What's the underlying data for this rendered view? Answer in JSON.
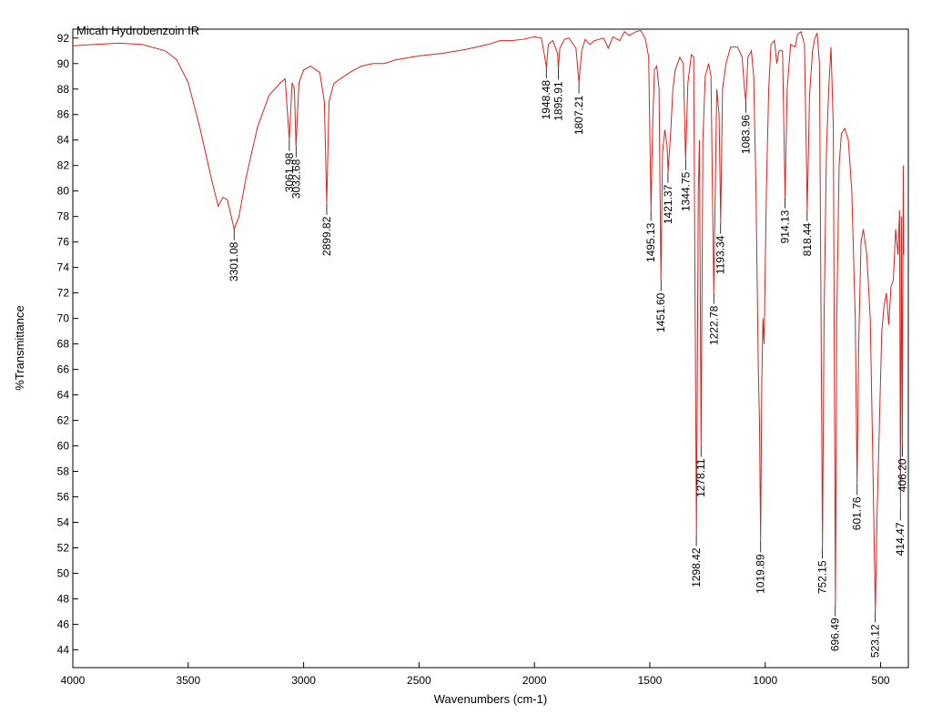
{
  "chart_data": {
    "type": "line",
    "xlabel": "Wavenumbers (cm-1)",
    "ylabel": "%Transmittance",
    "xlim": [
      4000,
      380
    ],
    "ylim": [
      42.6,
      92.7
    ],
    "xticks": [
      4000,
      3500,
      3000,
      2500,
      2000,
      1500,
      1000,
      500
    ],
    "yticks": [
      44,
      46,
      48,
      50,
      52,
      54,
      56,
      58,
      60,
      62,
      64,
      66,
      68,
      70,
      72,
      74,
      76,
      78,
      80,
      82,
      84,
      86,
      88,
      90,
      92
    ],
    "series": [
      {
        "name": "Micah Hydrobenzoin IR",
        "color": "#e0201b",
        "x": [
          4000,
          3900,
          3800,
          3700,
          3600,
          3550,
          3500,
          3450,
          3400,
          3370,
          3350,
          3330,
          3301,
          3280,
          3250,
          3200,
          3150,
          3100,
          3080,
          3062,
          3050,
          3040,
          3033,
          3020,
          3000,
          2970,
          2930,
          2910,
          2900,
          2890,
          2870,
          2850,
          2800,
          2750,
          2700,
          2650,
          2600,
          2500,
          2400,
          2300,
          2200,
          2150,
          2100,
          2050,
          2000,
          1970,
          1955,
          1948,
          1940,
          1920,
          1900,
          1896,
          1890,
          1870,
          1850,
          1820,
          1807,
          1795,
          1780,
          1760,
          1740,
          1700,
          1680,
          1660,
          1630,
          1610,
          1590,
          1560,
          1540,
          1520,
          1505,
          1495,
          1488,
          1480,
          1470,
          1460,
          1452,
          1445,
          1435,
          1425,
          1421,
          1410,
          1400,
          1390,
          1370,
          1355,
          1345,
          1335,
          1320,
          1310,
          1298,
          1290,
          1285,
          1278,
          1270,
          1260,
          1245,
          1235,
          1223,
          1210,
          1200,
          1193,
          1185,
          1170,
          1150,
          1120,
          1100,
          1090,
          1084,
          1075,
          1060,
          1050,
          1040,
          1030,
          1025,
          1020,
          1015,
          1010,
          1005,
          995,
          985,
          975,
          960,
          950,
          940,
          925,
          914,
          905,
          890,
          870,
          860,
          845,
          830,
          818,
          808,
          795,
          785,
          775,
          765,
          752,
          745,
          735,
          725,
          715,
          705,
          696,
          690,
          680,
          670,
          655,
          640,
          625,
          610,
          602,
          595,
          585,
          575,
          560,
          545,
          535,
          523,
          515,
          505,
          495,
          485,
          475,
          465,
          455,
          445,
          435,
          425,
          418,
          414,
          410,
          406,
          402,
          400
        ],
        "values": [
          91.4,
          91.5,
          91.6,
          91.5,
          91.0,
          90.3,
          88.5,
          85,
          81,
          78.8,
          79.5,
          79.3,
          77.0,
          78,
          81,
          85,
          87.5,
          88.5,
          88.8,
          84.0,
          88.5,
          88.0,
          83.5,
          88.5,
          89.5,
          89.8,
          89.3,
          87,
          79.0,
          87,
          88.4,
          88.7,
          89.3,
          89.8,
          90.0,
          90.0,
          90.3,
          90.6,
          90.8,
          91.1,
          91.5,
          91.8,
          91.8,
          91.9,
          92.1,
          92.0,
          90.5,
          89.7,
          91.5,
          91.8,
          90.8,
          89.6,
          91.2,
          91.9,
          92.0,
          91.2,
          88.5,
          91.0,
          91.9,
          91.5,
          91.8,
          92.0,
          91.2,
          92.1,
          91.8,
          92.5,
          92.2,
          92.5,
          92.6,
          92.0,
          90.5,
          78.5,
          85,
          89.5,
          89.8,
          88,
          73.0,
          83,
          84.8,
          83.5,
          81.5,
          84.5,
          88,
          89.5,
          90.5,
          90.0,
          82.5,
          88.5,
          90.7,
          90.5,
          53.0,
          80,
          84,
          60.0,
          84,
          89,
          90,
          89,
          72.0,
          88,
          86,
          77.5,
          88,
          90,
          91.3,
          91.3,
          90.5,
          88.0,
          87.0,
          90.5,
          91.0,
          89,
          80,
          66,
          62,
          52.5,
          65,
          70,
          68,
          80,
          88,
          91.5,
          91.8,
          90,
          91,
          91,
          79.5,
          88,
          91.5,
          91.3,
          92.3,
          92.5,
          91.5,
          78.5,
          87.5,
          91,
          92,
          92.4,
          90,
          52,
          70,
          83,
          88,
          91.3,
          85,
          47.5,
          70,
          82,
          84.5,
          84.9,
          84,
          80,
          70,
          57,
          68,
          76,
          77,
          75,
          70,
          60,
          47,
          55,
          62,
          69,
          71,
          72,
          69.5,
          72.5,
          73,
          77,
          75,
          78.5,
          55,
          78,
          60,
          82,
          75
        ]
      }
    ],
    "peaks": {
      "x": [
        3301.08,
        3061.98,
        3032.68,
        2899.82,
        1948.48,
        1895.91,
        1807.21,
        1495.13,
        1451.6,
        1421.37,
        1344.75,
        1298.42,
        1278.11,
        1222.78,
        1193.34,
        1083.96,
        1019.89,
        914.13,
        818.44,
        752.15,
        696.49,
        601.76,
        523.12,
        414.47,
        406.2
      ],
      "y": [
        77.0,
        84.0,
        83.5,
        79.0,
        89.7,
        89.6,
        88.5,
        78.5,
        73.0,
        81.5,
        82.5,
        53.0,
        60.0,
        72.0,
        77.5,
        87.0,
        52.5,
        79.5,
        78.5,
        52,
        47.5,
        57,
        47,
        55,
        60
      ],
      "labels": [
        "3301.08",
        "3061.98",
        "3032.68",
        "2899.82",
        "1948.48",
        "1895.91",
        "1807.21",
        "1495.13",
        "1451.60",
        "1421.37",
        "1344.75",
        "1298.42",
        "1278.11",
        "1222.78",
        "1193.34",
        "1083.96",
        "1019.89",
        "914.13",
        "818.44",
        "752.15",
        "696.49",
        "601.76",
        "523.12",
        "414.47",
        "406.20"
      ]
    }
  }
}
